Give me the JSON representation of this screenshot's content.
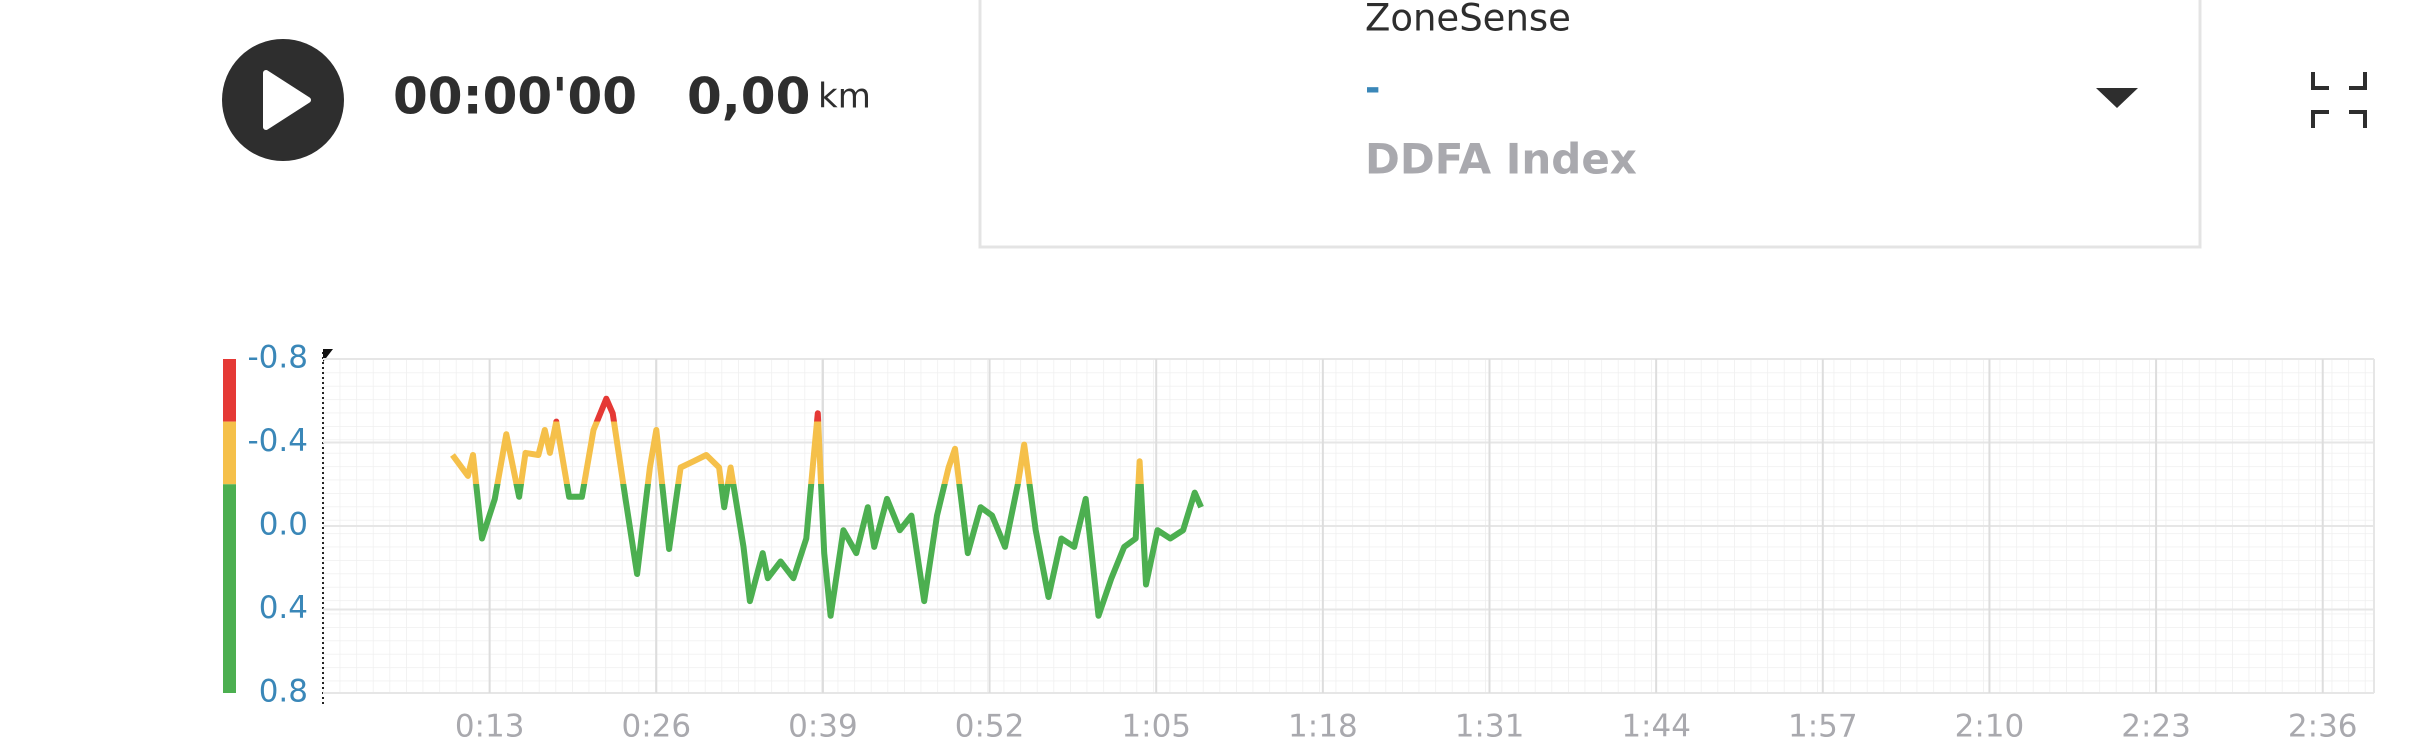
{
  "header": {
    "elapsed": "00:00'00",
    "distance": "0,00",
    "distance_unit": "km"
  },
  "dropdown": {
    "label": "ZoneSense",
    "value": "-",
    "metric": "DDFA Index"
  },
  "chart_data": {
    "type": "line",
    "x": [
      10.1,
      11.3,
      11.7,
      12.4,
      13.4,
      14.3,
      15.3,
      15.8,
      16.8,
      17.3,
      17.7,
      18.2,
      19.2,
      20.2,
      21.1,
      22.1,
      22.6,
      23.6,
      24.5,
      25.5,
      26.0,
      27.0,
      27.9,
      28.9,
      29.9,
      30.9,
      31.3,
      31.8,
      32.8,
      33.3,
      34.3,
      34.7,
      35.7,
      36.7,
      37.7,
      38.2,
      38.6,
      39.1,
      39.6,
      40.6,
      41.6,
      42.5,
      43.0,
      44.0,
      45.0,
      45.9,
      46.9,
      47.9,
      48.8,
      49.3,
      50.3,
      51.3,
      52.2,
      53.2,
      54.2,
      54.7,
      55.6,
      56.6,
      57.6,
      58.6,
      59.5,
      60.5,
      61.5,
      62.5,
      63.4,
      63.7,
      64.2,
      65.1,
      66.1,
      67.1,
      68.0,
      68.5
    ],
    "values": [
      -0.34,
      -0.24,
      -0.34,
      0.06,
      -0.13,
      -0.44,
      -0.14,
      -0.35,
      -0.34,
      -0.46,
      -0.35,
      -0.5,
      -0.14,
      -0.14,
      -0.46,
      -0.61,
      -0.54,
      -0.13,
      0.23,
      -0.28,
      -0.46,
      0.11,
      -0.28,
      -0.31,
      -0.34,
      -0.28,
      -0.09,
      -0.28,
      0.1,
      0.36,
      0.13,
      0.25,
      0.17,
      0.25,
      0.06,
      -0.28,
      -0.54,
      0.13,
      0.43,
      0.02,
      0.13,
      -0.09,
      0.1,
      -0.13,
      0.02,
      -0.05,
      0.36,
      -0.05,
      -0.28,
      -0.37,
      0.13,
      -0.09,
      -0.05,
      0.1,
      -0.2,
      -0.39,
      0.02,
      0.34,
      0.06,
      0.1,
      -0.13,
      0.43,
      0.25,
      0.1,
      0.06,
      -0.31,
      0.28,
      0.02,
      0.06,
      0.02,
      -0.16,
      -0.09
    ],
    "zones": [
      {
        "from": -0.8,
        "to": -0.5,
        "color": "#e53935"
      },
      {
        "from": -0.5,
        "to": -0.2,
        "color": "#f5c04a"
      },
      {
        "from": -0.2,
        "to": 0.8,
        "color": "#4caf50"
      }
    ],
    "xlim": [
      0,
      160
    ],
    "xticks": [
      {
        "value": 13,
        "label": "0:13"
      },
      {
        "value": 26,
        "label": "0:26"
      },
      {
        "value": 39,
        "label": "0:39"
      },
      {
        "value": 52,
        "label": "0:52"
      },
      {
        "value": 65,
        "label": "1:05"
      },
      {
        "value": 78,
        "label": "1:18"
      },
      {
        "value": 91,
        "label": "1:31"
      },
      {
        "value": 104,
        "label": "1:44"
      },
      {
        "value": 117,
        "label": "1:57"
      },
      {
        "value": 130,
        "label": "2:10"
      },
      {
        "value": 143,
        "label": "2:23"
      },
      {
        "value": 156,
        "label": "2:36"
      }
    ],
    "ylim": [
      0.8,
      -0.8
    ],
    "yticks": [
      -0.8,
      -0.4,
      {
        "value": 0,
        "label": "0.0"
      },
      0.4,
      0.8
    ],
    "grid": true
  }
}
